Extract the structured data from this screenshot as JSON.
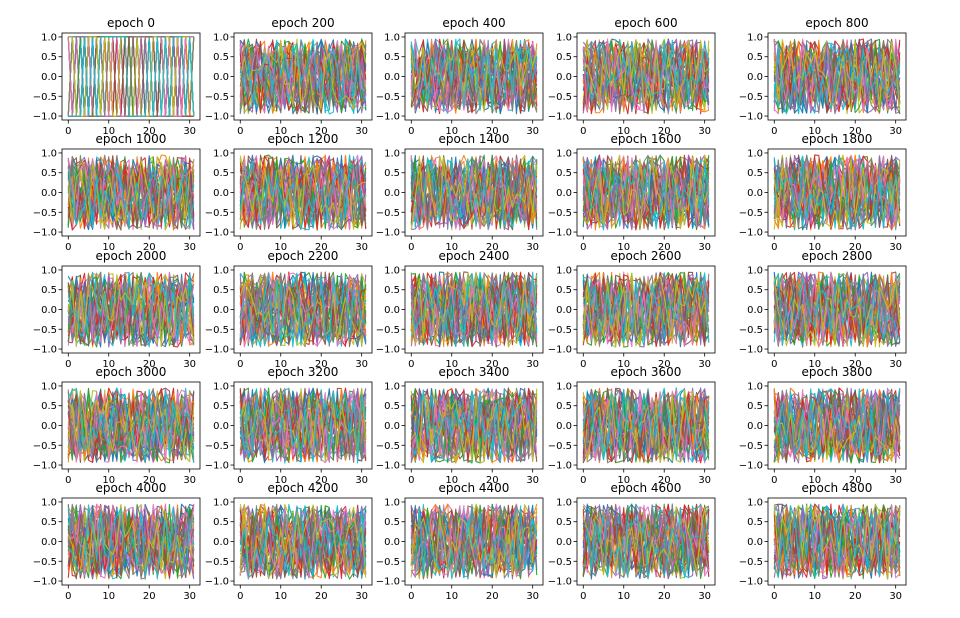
{
  "chart_data": {
    "type": "line",
    "layout": {
      "rows": 5,
      "cols": 5
    },
    "palette": [
      "#1f77b4",
      "#ff7f0e",
      "#2ca02c",
      "#d62728",
      "#9467bd",
      "#8c564b",
      "#e377c2",
      "#7f7f7f",
      "#bcbd22",
      "#17becf"
    ],
    "series_per_panel": 40,
    "points_per_series": 32,
    "xlim": [
      -1.55,
      32.55
    ],
    "ylim": [
      -1.1,
      1.1
    ],
    "xticks": [
      0,
      10,
      20,
      30
    ],
    "yticks": [
      1.0,
      0.5,
      0.0,
      -0.5,
      -1.0
    ],
    "xtick_labels": [
      "0",
      "10",
      "20",
      "30"
    ],
    "ytick_labels": [
      "1.0",
      "0.5",
      "0.0",
      "−0.5",
      "−1.0"
    ],
    "panels": [
      {
        "title": "epoch 0",
        "mode": "binary",
        "seed": 1
      },
      {
        "title": "epoch 200",
        "mode": "noise",
        "seed": 2
      },
      {
        "title": "epoch 400",
        "mode": "noise",
        "seed": 3
      },
      {
        "title": "epoch 600",
        "mode": "noise",
        "seed": 4
      },
      {
        "title": "epoch 800",
        "mode": "noise",
        "seed": 5
      },
      {
        "title": "epoch 1000",
        "mode": "noise",
        "seed": 6
      },
      {
        "title": "epoch 1200",
        "mode": "noise",
        "seed": 7
      },
      {
        "title": "epoch 1400",
        "mode": "noise",
        "seed": 8
      },
      {
        "title": "epoch 1600",
        "mode": "noise",
        "seed": 9
      },
      {
        "title": "epoch 1800",
        "mode": "noise",
        "seed": 10
      },
      {
        "title": "epoch 2000",
        "mode": "noise",
        "seed": 11
      },
      {
        "title": "epoch 2200",
        "mode": "noise",
        "seed": 12
      },
      {
        "title": "epoch 2400",
        "mode": "noise",
        "seed": 13
      },
      {
        "title": "epoch 2600",
        "mode": "noise",
        "seed": 14
      },
      {
        "title": "epoch 2800",
        "mode": "noise",
        "seed": 15
      },
      {
        "title": "epoch 3000",
        "mode": "noise",
        "seed": 16
      },
      {
        "title": "epoch 3200",
        "mode": "noise",
        "seed": 17
      },
      {
        "title": "epoch 3400",
        "mode": "noise",
        "seed": 18
      },
      {
        "title": "epoch 3600",
        "mode": "noise",
        "seed": 19
      },
      {
        "title": "epoch 3800",
        "mode": "noise",
        "seed": 20
      },
      {
        "title": "epoch 4000",
        "mode": "noise",
        "seed": 21
      },
      {
        "title": "epoch 4200",
        "mode": "noise",
        "seed": 22
      },
      {
        "title": "epoch 4400",
        "mode": "noise",
        "seed": 23
      },
      {
        "title": "epoch 4600",
        "mode": "noise",
        "seed": 24
      },
      {
        "title": "epoch 4800",
        "mode": "noise",
        "seed": 25
      }
    ]
  }
}
